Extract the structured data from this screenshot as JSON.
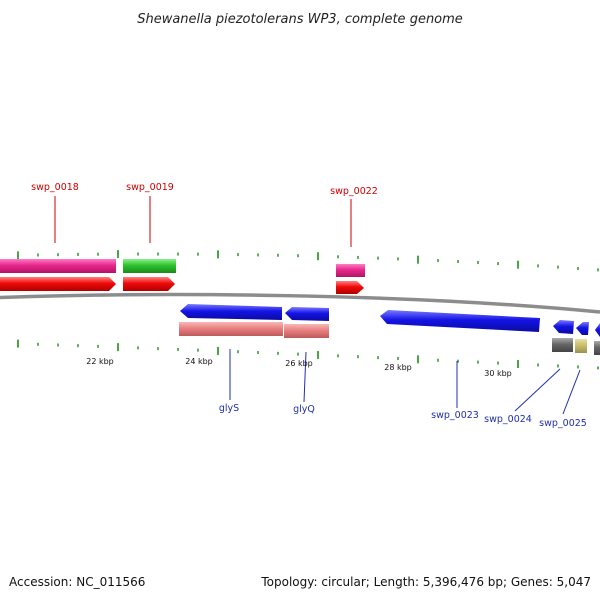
{
  "title": "Shewanella piezotolerans WP3, complete genome",
  "footer": {
    "accession": "Accession: NC_011566",
    "summary": "Topology: circular; Length: 5,396,476 bp; Genes: 5,047"
  },
  "kbp_labels": [
    "22 kbp",
    "24 kbp",
    "26 kbp",
    "28 kbp",
    "30 kbp"
  ],
  "genes_top": [
    "swp_0018",
    "swp_0019",
    "swp_0022"
  ],
  "genes_bottom": [
    "glyS",
    "glyQ",
    "swp_0023",
    "swp_0024",
    "swp_0025"
  ],
  "colors": {
    "backbone": "#8c8c8c",
    "tick": "#1a8f1a",
    "magenta": "#e8268c",
    "green": "#2ec22e",
    "red": "#f00a0a",
    "blue": "#1414e6",
    "salmon": "#e88080",
    "grey": "#666666",
    "khaki": "#c8bf6e",
    "label_top": "#cc0000",
    "label_bottom": "#1f2fb0"
  }
}
